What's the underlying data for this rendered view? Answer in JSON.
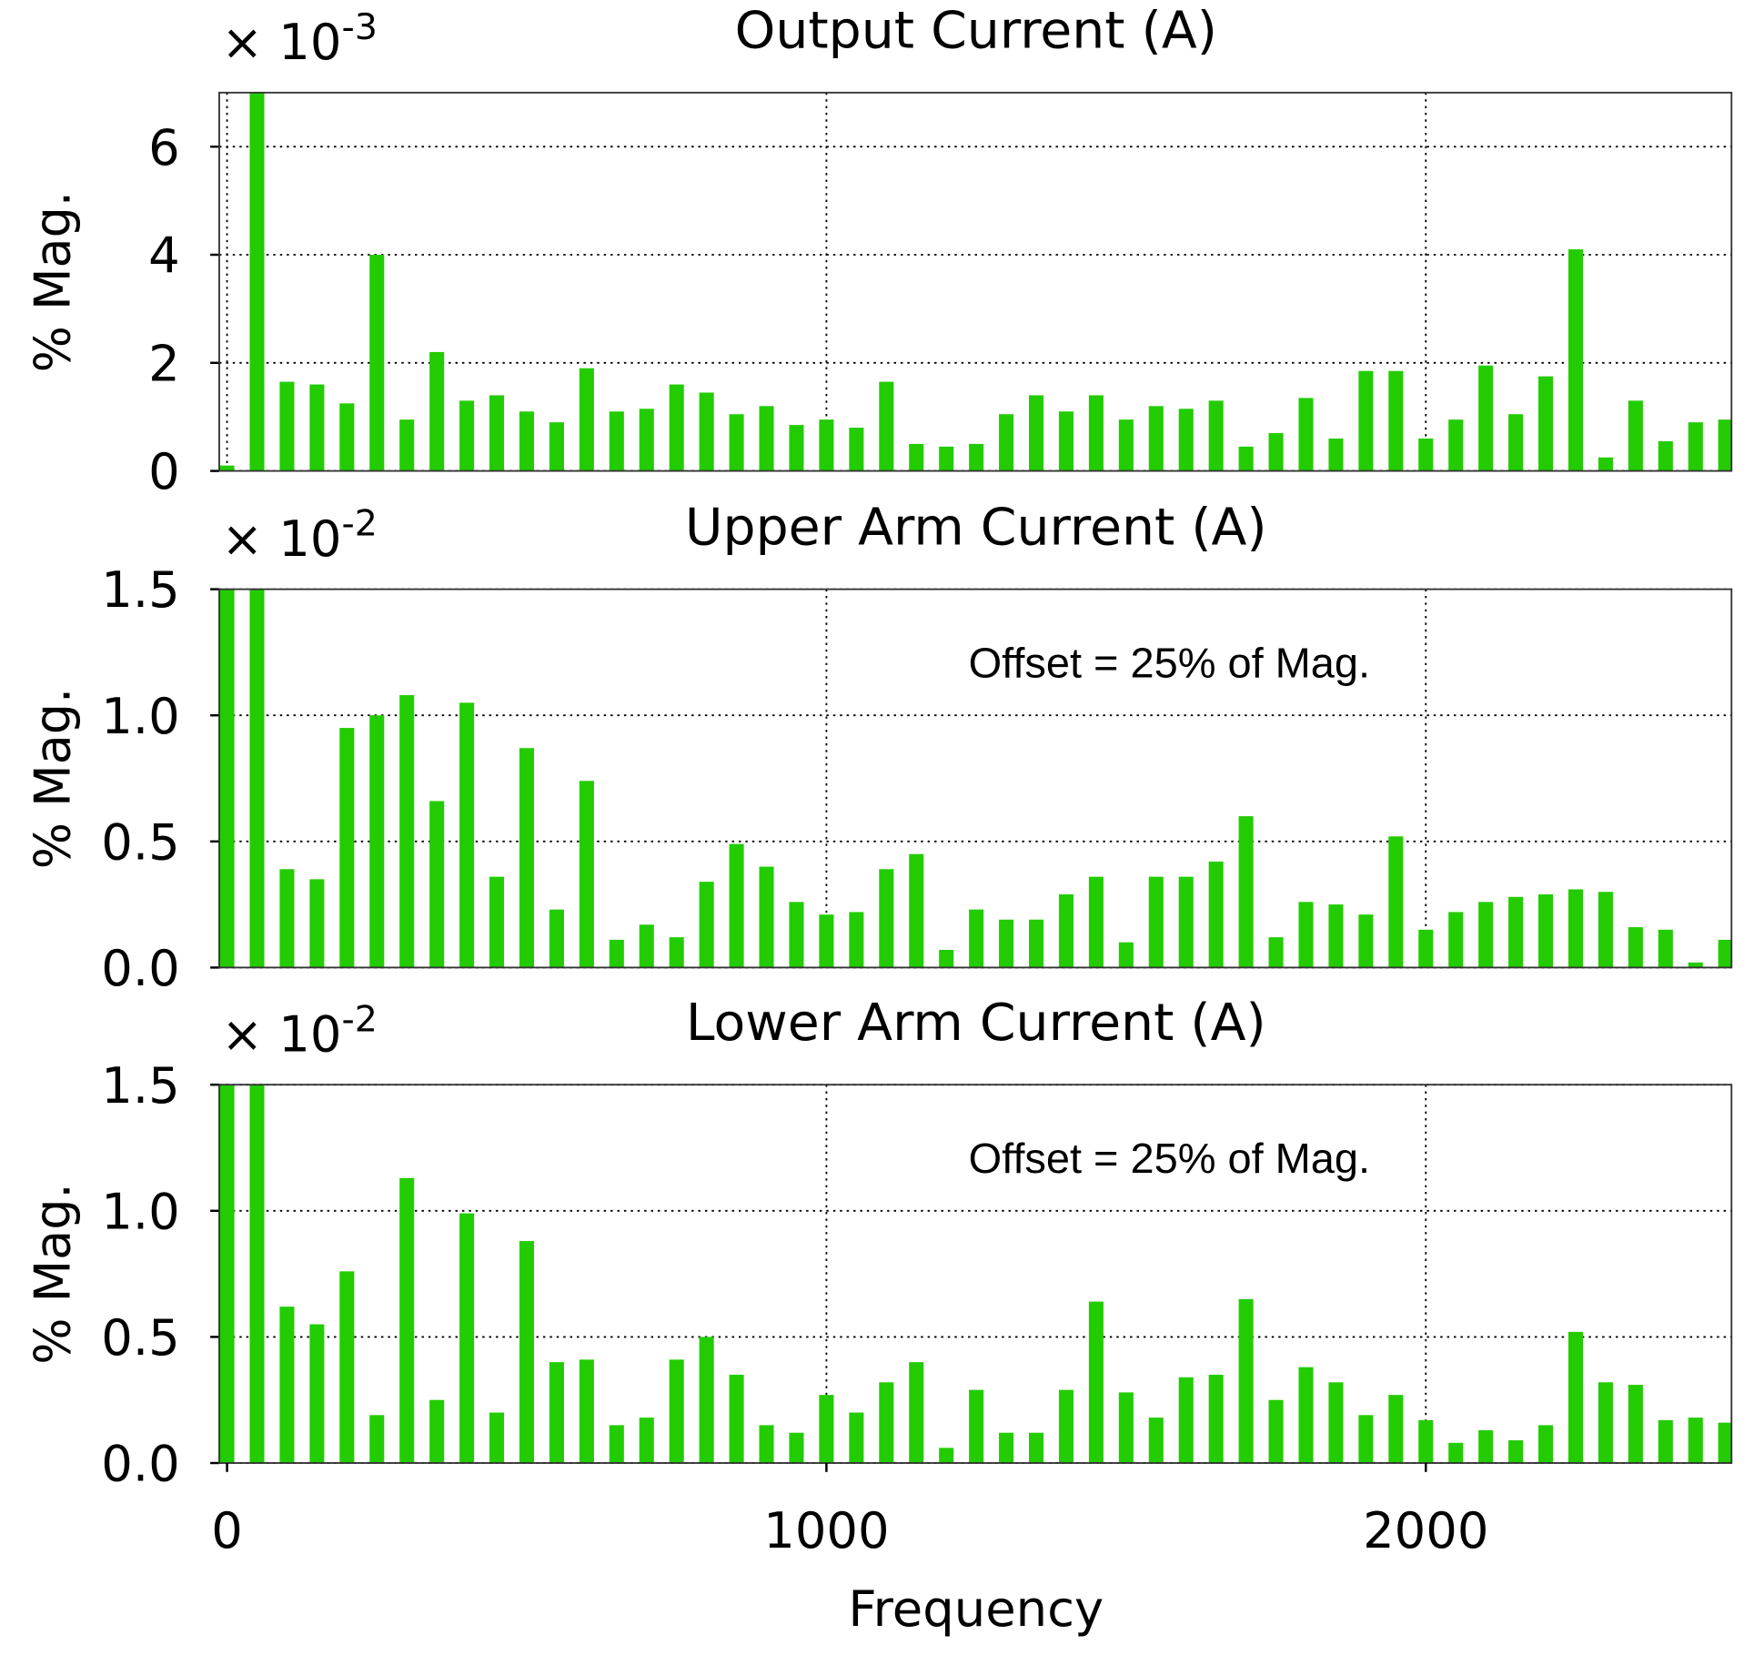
{
  "chart_data": [
    {
      "type": "bar",
      "title": "Output Current (A)",
      "y_label": "% Mag.",
      "scale_base": "× 10",
      "scale_exponent": "-3",
      "color": "#22cc00",
      "grid": true,
      "x": [
        0,
        50,
        100,
        150,
        200,
        250,
        300,
        350,
        400,
        450,
        500,
        550,
        600,
        650,
        700,
        750,
        800,
        850,
        900,
        950,
        1000,
        1050,
        1100,
        1150,
        1200,
        1250,
        1300,
        1350,
        1400,
        1450,
        1500,
        1550,
        1600,
        1650,
        1700,
        1750,
        1800,
        1850,
        1900,
        1950,
        2000,
        2050,
        2100,
        2150,
        2200,
        2250,
        2300,
        2350,
        2400,
        2450,
        2500
      ],
      "values": [
        0.1,
        7,
        1.65,
        1.6,
        1.25,
        4.0,
        0.95,
        2.2,
        1.3,
        1.4,
        1.1,
        0.9,
        1.9,
        1.1,
        1.15,
        1.6,
        1.45,
        1.05,
        1.2,
        0.85,
        0.95,
        0.8,
        1.65,
        0.5,
        0.45,
        0.5,
        1.05,
        1.4,
        1.1,
        1.4,
        0.95,
        1.2,
        1.15,
        1.3,
        0.45,
        0.7,
        1.35,
        0.6,
        1.85,
        1.85,
        0.6,
        0.95,
        1.95,
        1.05,
        1.75,
        4.1,
        0.25,
        1.3,
        0.55,
        0.9,
        0.95
      ],
      "xlim": [
        -13,
        2510
      ],
      "xticks": [
        0,
        1000,
        2000
      ],
      "ylim": [
        0,
        7
      ],
      "yticks": [
        0,
        2,
        4,
        6
      ]
    },
    {
      "type": "bar",
      "title": "Upper Arm Current (A)",
      "y_label": "% Mag.",
      "scale_base": "× 10",
      "scale_exponent": "-2",
      "annotation": "Offset = 25% of Mag.",
      "color": "#22cc00",
      "grid": true,
      "x": [
        0,
        50,
        100,
        150,
        200,
        250,
        300,
        350,
        400,
        450,
        500,
        550,
        600,
        650,
        700,
        750,
        800,
        850,
        900,
        950,
        1000,
        1050,
        1100,
        1150,
        1200,
        1250,
        1300,
        1350,
        1400,
        1450,
        1500,
        1550,
        1600,
        1650,
        1700,
        1750,
        1800,
        1850,
        1900,
        1950,
        2000,
        2050,
        2100,
        2150,
        2200,
        2250,
        2300,
        2350,
        2400,
        2450,
        2500
      ],
      "values": [
        1.5,
        1.5,
        0.39,
        0.35,
        0.95,
        1.0,
        1.08,
        0.66,
        1.05,
        0.36,
        0.87,
        0.23,
        0.74,
        0.11,
        0.17,
        0.12,
        0.34,
        0.49,
        0.4,
        0.26,
        0.21,
        0.22,
        0.39,
        0.45,
        0.07,
        0.23,
        0.19,
        0.19,
        0.29,
        0.36,
        0.1,
        0.36,
        0.36,
        0.42,
        0.6,
        0.12,
        0.26,
        0.25,
        0.21,
        0.52,
        0.15,
        0.22,
        0.26,
        0.28,
        0.29,
        0.31,
        0.3,
        0.16,
        0.15,
        0.02,
        0.11
      ],
      "xlim": [
        -13,
        2510
      ],
      "xticks": [
        0,
        1000,
        2000
      ],
      "ylim": [
        0,
        1.5
      ],
      "yticks": [
        {
          "value": 0,
          "label": "0.0"
        },
        0.5,
        {
          "value": 1,
          "label": "1.0"
        },
        1.5
      ]
    },
    {
      "type": "bar",
      "title": "Lower Arm Current (A)",
      "y_label": "% Mag.",
      "x_label": "Frequency",
      "scale_base": "× 10",
      "scale_exponent": "-2",
      "annotation": "Offset = 25% of Mag.",
      "color": "#22cc00",
      "grid": true,
      "x": [
        0,
        50,
        100,
        150,
        200,
        250,
        300,
        350,
        400,
        450,
        500,
        550,
        600,
        650,
        700,
        750,
        800,
        850,
        900,
        950,
        1000,
        1050,
        1100,
        1150,
        1200,
        1250,
        1300,
        1350,
        1400,
        1450,
        1500,
        1550,
        1600,
        1650,
        1700,
        1750,
        1800,
        1850,
        1900,
        1950,
        2000,
        2050,
        2100,
        2150,
        2200,
        2250,
        2300,
        2350,
        2400,
        2450,
        2500
      ],
      "values": [
        1.5,
        1.5,
        0.62,
        0.55,
        0.76,
        0.19,
        1.13,
        0.25,
        0.99,
        0.2,
        0.88,
        0.4,
        0.41,
        0.15,
        0.18,
        0.41,
        0.5,
        0.35,
        0.15,
        0.12,
        0.27,
        0.2,
        0.32,
        0.4,
        0.06,
        0.29,
        0.12,
        0.12,
        0.29,
        0.64,
        0.28,
        0.18,
        0.34,
        0.35,
        0.65,
        0.25,
        0.38,
        0.32,
        0.19,
        0.27,
        0.17,
        0.08,
        0.13,
        0.09,
        0.15,
        0.52,
        0.32,
        0.31,
        0.17,
        0.18,
        0.16
      ],
      "xlim": [
        -13,
        2510
      ],
      "xticks": [
        0,
        1000,
        2000
      ],
      "ylim": [
        0,
        1.5
      ],
      "yticks": [
        {
          "value": 0,
          "label": "0.0"
        },
        0.5,
        {
          "value": 1,
          "label": "1.0"
        },
        1.5
      ]
    }
  ]
}
